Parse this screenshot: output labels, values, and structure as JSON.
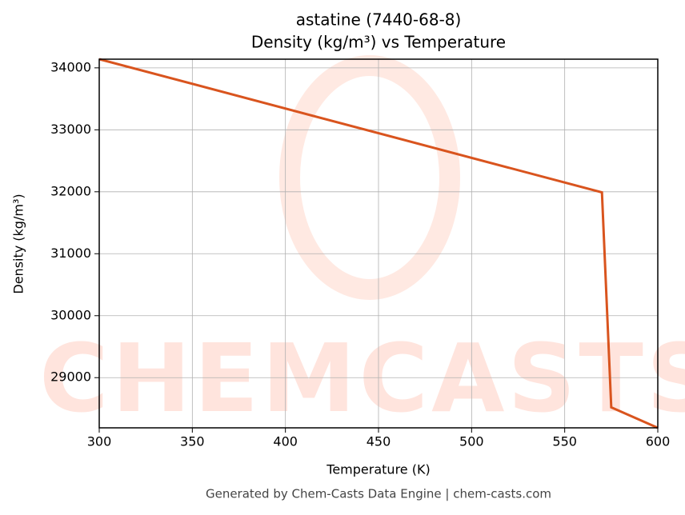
{
  "chart_data": {
    "type": "line",
    "title": "astatine (7440-68-8)",
    "subtitle": "Density (kg/m³) vs Temperature",
    "x_label": "Temperature (K)",
    "y_label": "Density (kg/m³)",
    "x": [
      300,
      570,
      575,
      600
    ],
    "series": [
      {
        "name": "Density",
        "color": "#d9541e",
        "values": [
          34140,
          31990,
          28520,
          28190
        ]
      }
    ],
    "xlim": [
      300,
      600
    ],
    "xticks": [
      300,
      350,
      400,
      450,
      500,
      550,
      600
    ],
    "ylim": [
      28190,
      34140
    ],
    "yticks": [
      29000,
      30000,
      31000,
      32000,
      33000,
      34000
    ],
    "grid": true,
    "watermark": "CHEMCASTS",
    "footer": "Generated by Chem-Casts Data Engine | chem-casts.com"
  }
}
